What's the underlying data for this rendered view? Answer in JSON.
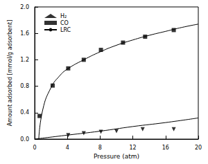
{
  "chart_data": {
    "type": "scatter",
    "x_label": "Pressure (atm)",
    "y_label": "Amount adsorbed [mmol/g adsorbent]",
    "xlim": [
      0,
      20
    ],
    "xticks": [
      0,
      4,
      8,
      12,
      16,
      20
    ],
    "ylim": [
      0,
      2
    ],
    "yticks": [
      {
        "value": 0,
        "label": "0.0"
      },
      0.4,
      0.8,
      1.2,
      1.6,
      {
        "value": 2,
        "label": "2.0"
      }
    ],
    "grid": false,
    "legend": "upper left",
    "series": [
      {
        "name": "H₂",
        "type": "scatter",
        "color": "#000000",
        "marker": "triangle-down",
        "x": [
          4.1,
          6.0,
          8.1,
          10.0,
          13.2,
          17.0
        ],
        "values": [
          0.06,
          0.09,
          0.11,
          0.12,
          0.15,
          0.15
        ]
      },
      {
        "name": "CO",
        "type": "scatter",
        "color": "#000000",
        "marker": "square",
        "x": [
          0.6,
          2.2,
          4.1,
          6.0,
          8.1,
          10.8,
          13.5,
          17.0
        ],
        "values": [
          0.35,
          0.81,
          1.07,
          1.2,
          1.35,
          1.46,
          1.55,
          1.65
        ]
      },
      {
        "name": "LRC",
        "type": "line",
        "color": "#000000",
        "line_style": "solid",
        "x": [
          0.5,
          1,
          2,
          3,
          4,
          6,
          8,
          10,
          12,
          14,
          16,
          18,
          20
        ],
        "values": [
          0,
          0.45,
          0.78,
          0.95,
          1.06,
          1.2,
          1.32,
          1.42,
          1.5,
          1.57,
          1.63,
          1.69,
          1.74
        ]
      },
      {
        "name": "LRC",
        "type": "line",
        "color": "#000000",
        "line_style": "solid",
        "x": [
          0,
          4,
          8,
          12,
          16,
          20
        ],
        "values": [
          0,
          0.06,
          0.12,
          0.19,
          0.25,
          0.32
        ]
      }
    ]
  }
}
